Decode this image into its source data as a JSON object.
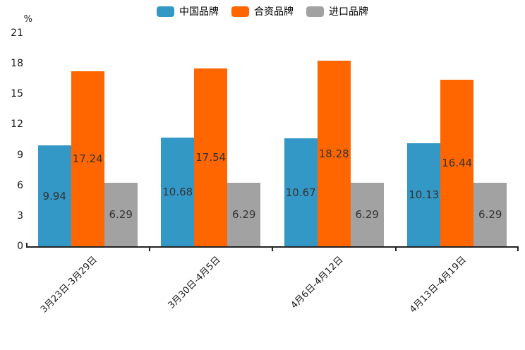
{
  "chart_data": {
    "type": "bar",
    "title": "",
    "ylabel": "%",
    "xlabel": "",
    "ylim": [
      0,
      21
    ],
    "yticks": [
      0,
      3,
      6,
      9,
      12,
      15,
      18,
      21
    ],
    "grid": false,
    "legend_position": "top",
    "value_labels": "inside-center",
    "categories": [
      "3月23日-3月29日",
      "3月30日-4月5日",
      "4月6日-4月12日",
      "4月13日-4月19日"
    ],
    "series": [
      {
        "name": "中国品牌",
        "color": "#3498c7",
        "values": [
          9.94,
          10.68,
          10.67,
          10.13
        ]
      },
      {
        "name": "合资品牌",
        "color": "#ff6600",
        "values": [
          17.24,
          17.54,
          18.28,
          16.44
        ]
      },
      {
        "name": "进口品牌",
        "color": "#a2a2a2",
        "values": [
          6.29,
          6.29,
          6.29,
          6.29
        ]
      }
    ],
    "colors": {
      "axis": "#222222",
      "value_label_text": "#333333",
      "tick_label_text": "#1a1a1a",
      "background": "#ffffff"
    }
  }
}
